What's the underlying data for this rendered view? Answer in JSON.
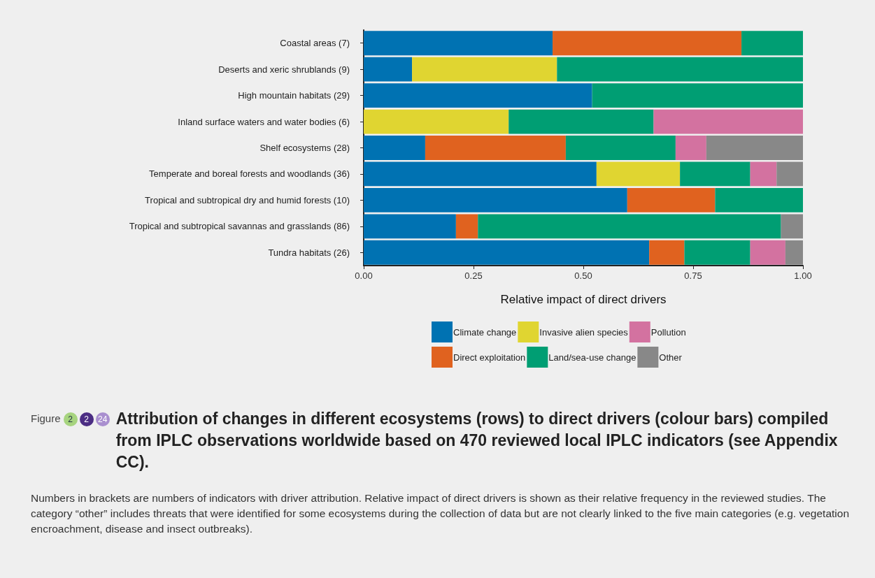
{
  "chart_data": {
    "type": "bar",
    "orientation": "horizontal",
    "stacked": true,
    "title": "Attribution of changes in different ecosystems (rows) to direct drivers (colour bars) compiled from IPLC observations worldwide based on 470 reviewed local IPLC indicators (see Appendix CC).",
    "xlabel": "Relative impact of direct drivers",
    "categories": [
      "Coastal areas (7)",
      "Deserts and xeric shrublands (9)",
      "High mountain habitats (29)",
      "Inland surface waters and water bodies (6)",
      "Shelf ecosystems (28)",
      "Temperate and boreal forests and woodlands (36)",
      "Tropical and subtropical dry and humid forests (10)",
      "Tropical and subtropical savannas and grasslands (86)",
      "Tundra habitats (26)"
    ],
    "series": [
      {
        "name": "Climate change",
        "color": "#0072b2",
        "values": [
          0.43,
          0.11,
          0.52,
          0,
          0.14,
          0.53,
          0.6,
          0.21,
          0.65
        ]
      },
      {
        "name": "Direct exploitation",
        "color": "#e0621f",
        "values": [
          0.43,
          0,
          0,
          0,
          0.32,
          0,
          0.2,
          0.05,
          0.08
        ]
      },
      {
        "name": "Invasive alien species",
        "color": "#e0d531",
        "values": [
          0,
          0.33,
          0,
          0.33,
          0,
          0.19,
          0,
          0,
          0
        ]
      },
      {
        "name": "Land/sea-use change",
        "color": "#009e73",
        "values": [
          0.14,
          0.56,
          0.48,
          0.33,
          0.25,
          0.16,
          0.2,
          0.69,
          0.15
        ]
      },
      {
        "name": "Pollution",
        "color": "#d372a0",
        "values": [
          0,
          0,
          0,
          0.34,
          0.07,
          0.06,
          0,
          0,
          0.08
        ]
      },
      {
        "name": "Other",
        "color": "#888888",
        "values": [
          0,
          0,
          0,
          0,
          0.22,
          0.06,
          0,
          0.05,
          0.04
        ]
      }
    ],
    "xlim": [
      0,
      1
    ],
    "xticks": [
      {
        "value": 0,
        "label": "0.00"
      },
      {
        "value": 0.25,
        "label": "0.25"
      },
      {
        "value": 0.5,
        "label": "0.50"
      },
      {
        "value": 0.75,
        "label": "0.75"
      },
      {
        "value": 1,
        "label": "1.00"
      }
    ],
    "grid": false,
    "legend": "bottom",
    "annotations": [
      "Figure",
      "2",
      "2",
      "24",
      "Numbers in brackets are numbers of indicators with driver attribution. Relative impact of direct drivers is shown as their relative frequency in the reviewed studies. The category “other” includes threats that were identified for some ecosystems during the collection of data but are not clearly linked to the five main categories (e.g. vegetation encroachment, disease and insect outbreaks)."
    ]
  }
}
